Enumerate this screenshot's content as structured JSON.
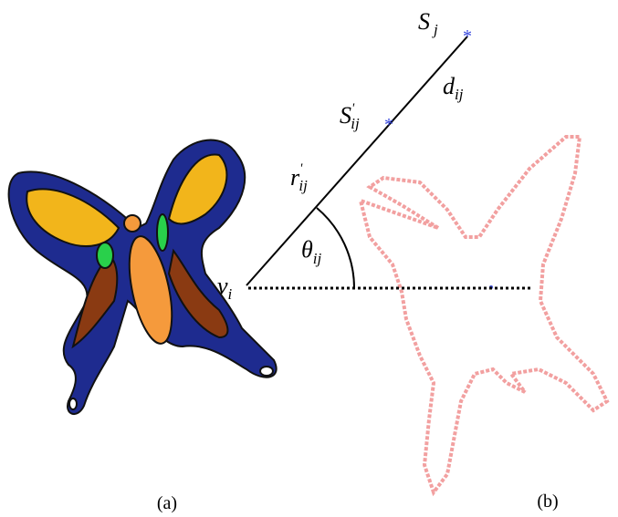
{
  "labels": [
    {
      "base": "S",
      "sub": "j"
    },
    {
      "base": "d",
      "sub": "ij"
    },
    {
      "base": "S",
      "sup": "'",
      "sub": "ij"
    },
    {
      "base": "r",
      "sup": "'",
      "sub": "ij"
    },
    {
      "base": "θ",
      "sub": "ij"
    },
    {
      "base": "v",
      "sub": "i"
    }
  ],
  "captions": [
    "(a)",
    "(b)"
  ]
}
